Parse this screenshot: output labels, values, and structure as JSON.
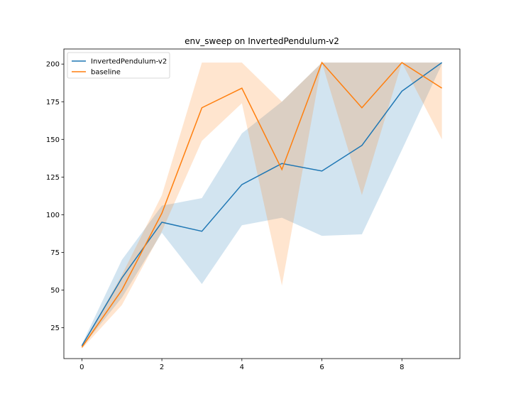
{
  "chart_data": {
    "type": "line",
    "title": "env_sweep on InvertedPendulum-v2",
    "xlabel": "",
    "ylabel": "",
    "xlim": [
      -0.45,
      9.45
    ],
    "ylim": [
      4.5,
      210
    ],
    "x_ticks": [
      0,
      2,
      4,
      6,
      8
    ],
    "y_ticks": [
      25,
      50,
      75,
      100,
      125,
      150,
      175,
      200
    ],
    "grid": false,
    "legend_position": "top-left",
    "x": [
      0,
      1,
      2,
      3,
      4,
      5,
      6,
      7,
      8,
      9
    ],
    "series": [
      {
        "name": "InvertedPendulum-v2",
        "color": "#1f77b4",
        "values": [
          13,
          58,
          95,
          89,
          120,
          134,
          129,
          146,
          182,
          201
        ],
        "lower": [
          12,
          45,
          88,
          54,
          93,
          98,
          86,
          87,
          143,
          200
        ],
        "upper": [
          14,
          70,
          106,
          111,
          154,
          175,
          201,
          201,
          201,
          201
        ]
      },
      {
        "name": "baseline",
        "color": "#ff7f0e",
        "values": [
          12,
          50,
          101,
          171,
          184,
          130,
          201,
          171,
          201,
          184
        ],
        "lower": [
          11,
          40,
          89,
          149,
          174,
          53,
          201,
          113,
          201,
          150
        ],
        "upper": [
          13,
          60,
          113,
          201,
          201,
          175,
          201,
          201,
          201,
          201
        ]
      }
    ]
  }
}
